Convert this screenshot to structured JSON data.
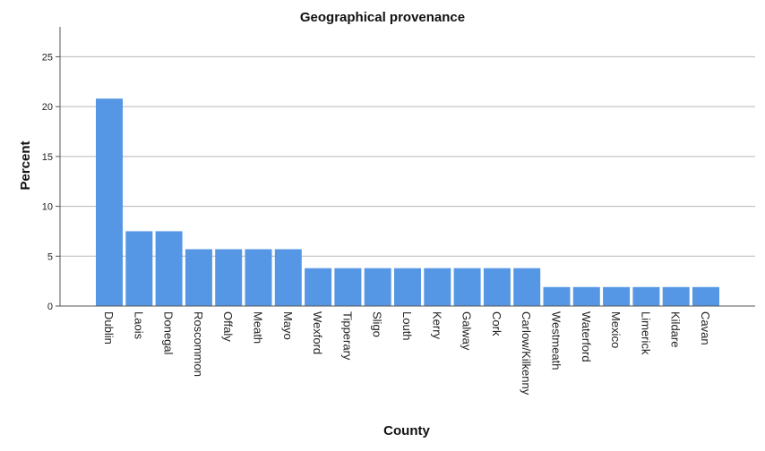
{
  "chart_data": {
    "type": "bar",
    "title": "Geographical provenance",
    "xlabel": "County",
    "ylabel": "Percent",
    "categories": [
      "Dublin",
      "Laois",
      "Donegal",
      "Roscommon",
      "Offaly",
      "Meath",
      "Mayo",
      "Wexford",
      "Tipperary",
      "Sligo",
      "Louth",
      "Kerry",
      "Galway",
      "Cork",
      "Carlow/Kilkenny",
      "Westmeath",
      "Waterford",
      "Mexico",
      "Limerick",
      "Kildare",
      "Cavan"
    ],
    "values": [
      20.8,
      7.5,
      7.5,
      5.7,
      5.7,
      5.7,
      5.7,
      3.8,
      3.8,
      3.8,
      3.8,
      3.8,
      3.8,
      3.8,
      3.8,
      1.9,
      1.9,
      1.9,
      1.9,
      1.9,
      1.9
    ],
    "ylim": [
      0,
      28
    ],
    "yticks": [
      0,
      5,
      10,
      15,
      20,
      25
    ],
    "grid": true,
    "bar_color": "#5597e4"
  }
}
